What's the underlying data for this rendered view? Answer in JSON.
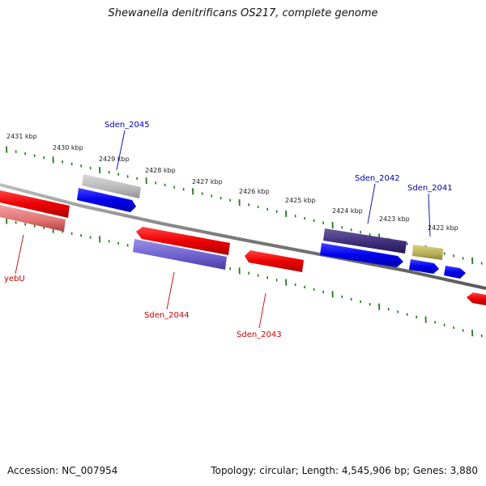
{
  "title": "Shewanella denitrificans OS217, complete genome",
  "footer": {
    "accession_label": "Accession:",
    "accession": "NC_007954",
    "topology_label": "Topology:",
    "topology": "circular",
    "length_label": "Length:",
    "length": "4,545,906 bp",
    "genes_label": "Genes:",
    "genes": "3,880"
  },
  "colors": {
    "backbone": "#808080",
    "ticks": "#1a7a1a",
    "forward_cds": "#0000ee",
    "reverse_cds": "#ee0000",
    "forward_label": "#0000aa",
    "reverse_label": "#cc0000"
  },
  "scale": {
    "unit": "kbp",
    "labels": [
      "2431 kbp",
      "2430 kbp",
      "2429 kbp",
      "2428 kbp",
      "2427 kbp",
      "2426 kbp",
      "2425 kbp",
      "2424 kbp",
      "2423 kbp",
      "2422 kbp"
    ]
  },
  "gene_labels": {
    "forward": [
      "Sden_2045",
      "Sden_2042",
      "Sden_2041"
    ],
    "reverse": [
      "yebU",
      "Sden_2044",
      "Sden_2043"
    ]
  }
}
